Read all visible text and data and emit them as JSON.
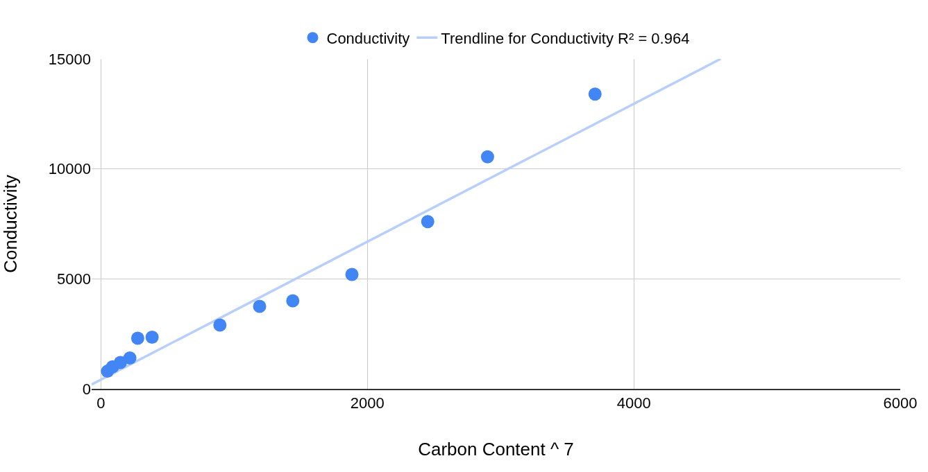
{
  "chart_data": {
    "type": "scatter",
    "xlabel": "Carbon Content ^ 7",
    "ylabel": "Conductivity",
    "x": [
      49,
      87,
      146,
      217,
      276,
      384,
      893,
      1191,
      1440,
      1884,
      2453,
      2902,
      3709
    ],
    "series": [
      {
        "name": "Conductivity",
        "color": "#4285f4",
        "marker": "circle",
        "values": [
          800,
          1000,
          1200,
          1400,
          2300,
          2350,
          2900,
          3750,
          4000,
          5200,
          7600,
          10550,
          13400
        ]
      },
      {
        "name": "Trendline for Conductivity R² = 0.964",
        "type": "line",
        "color": "#b7cffa",
        "x": [
          -70,
          4651
        ],
        "values": [
          200,
          15000
        ]
      }
    ],
    "xlim": [
      -70,
      6000
    ],
    "xticks": [
      0,
      2000,
      4000,
      6000
    ],
    "ylim": [
      0,
      15000
    ],
    "yticks": [
      0,
      5000,
      10000,
      15000
    ],
    "grid": true,
    "legend": "top"
  }
}
